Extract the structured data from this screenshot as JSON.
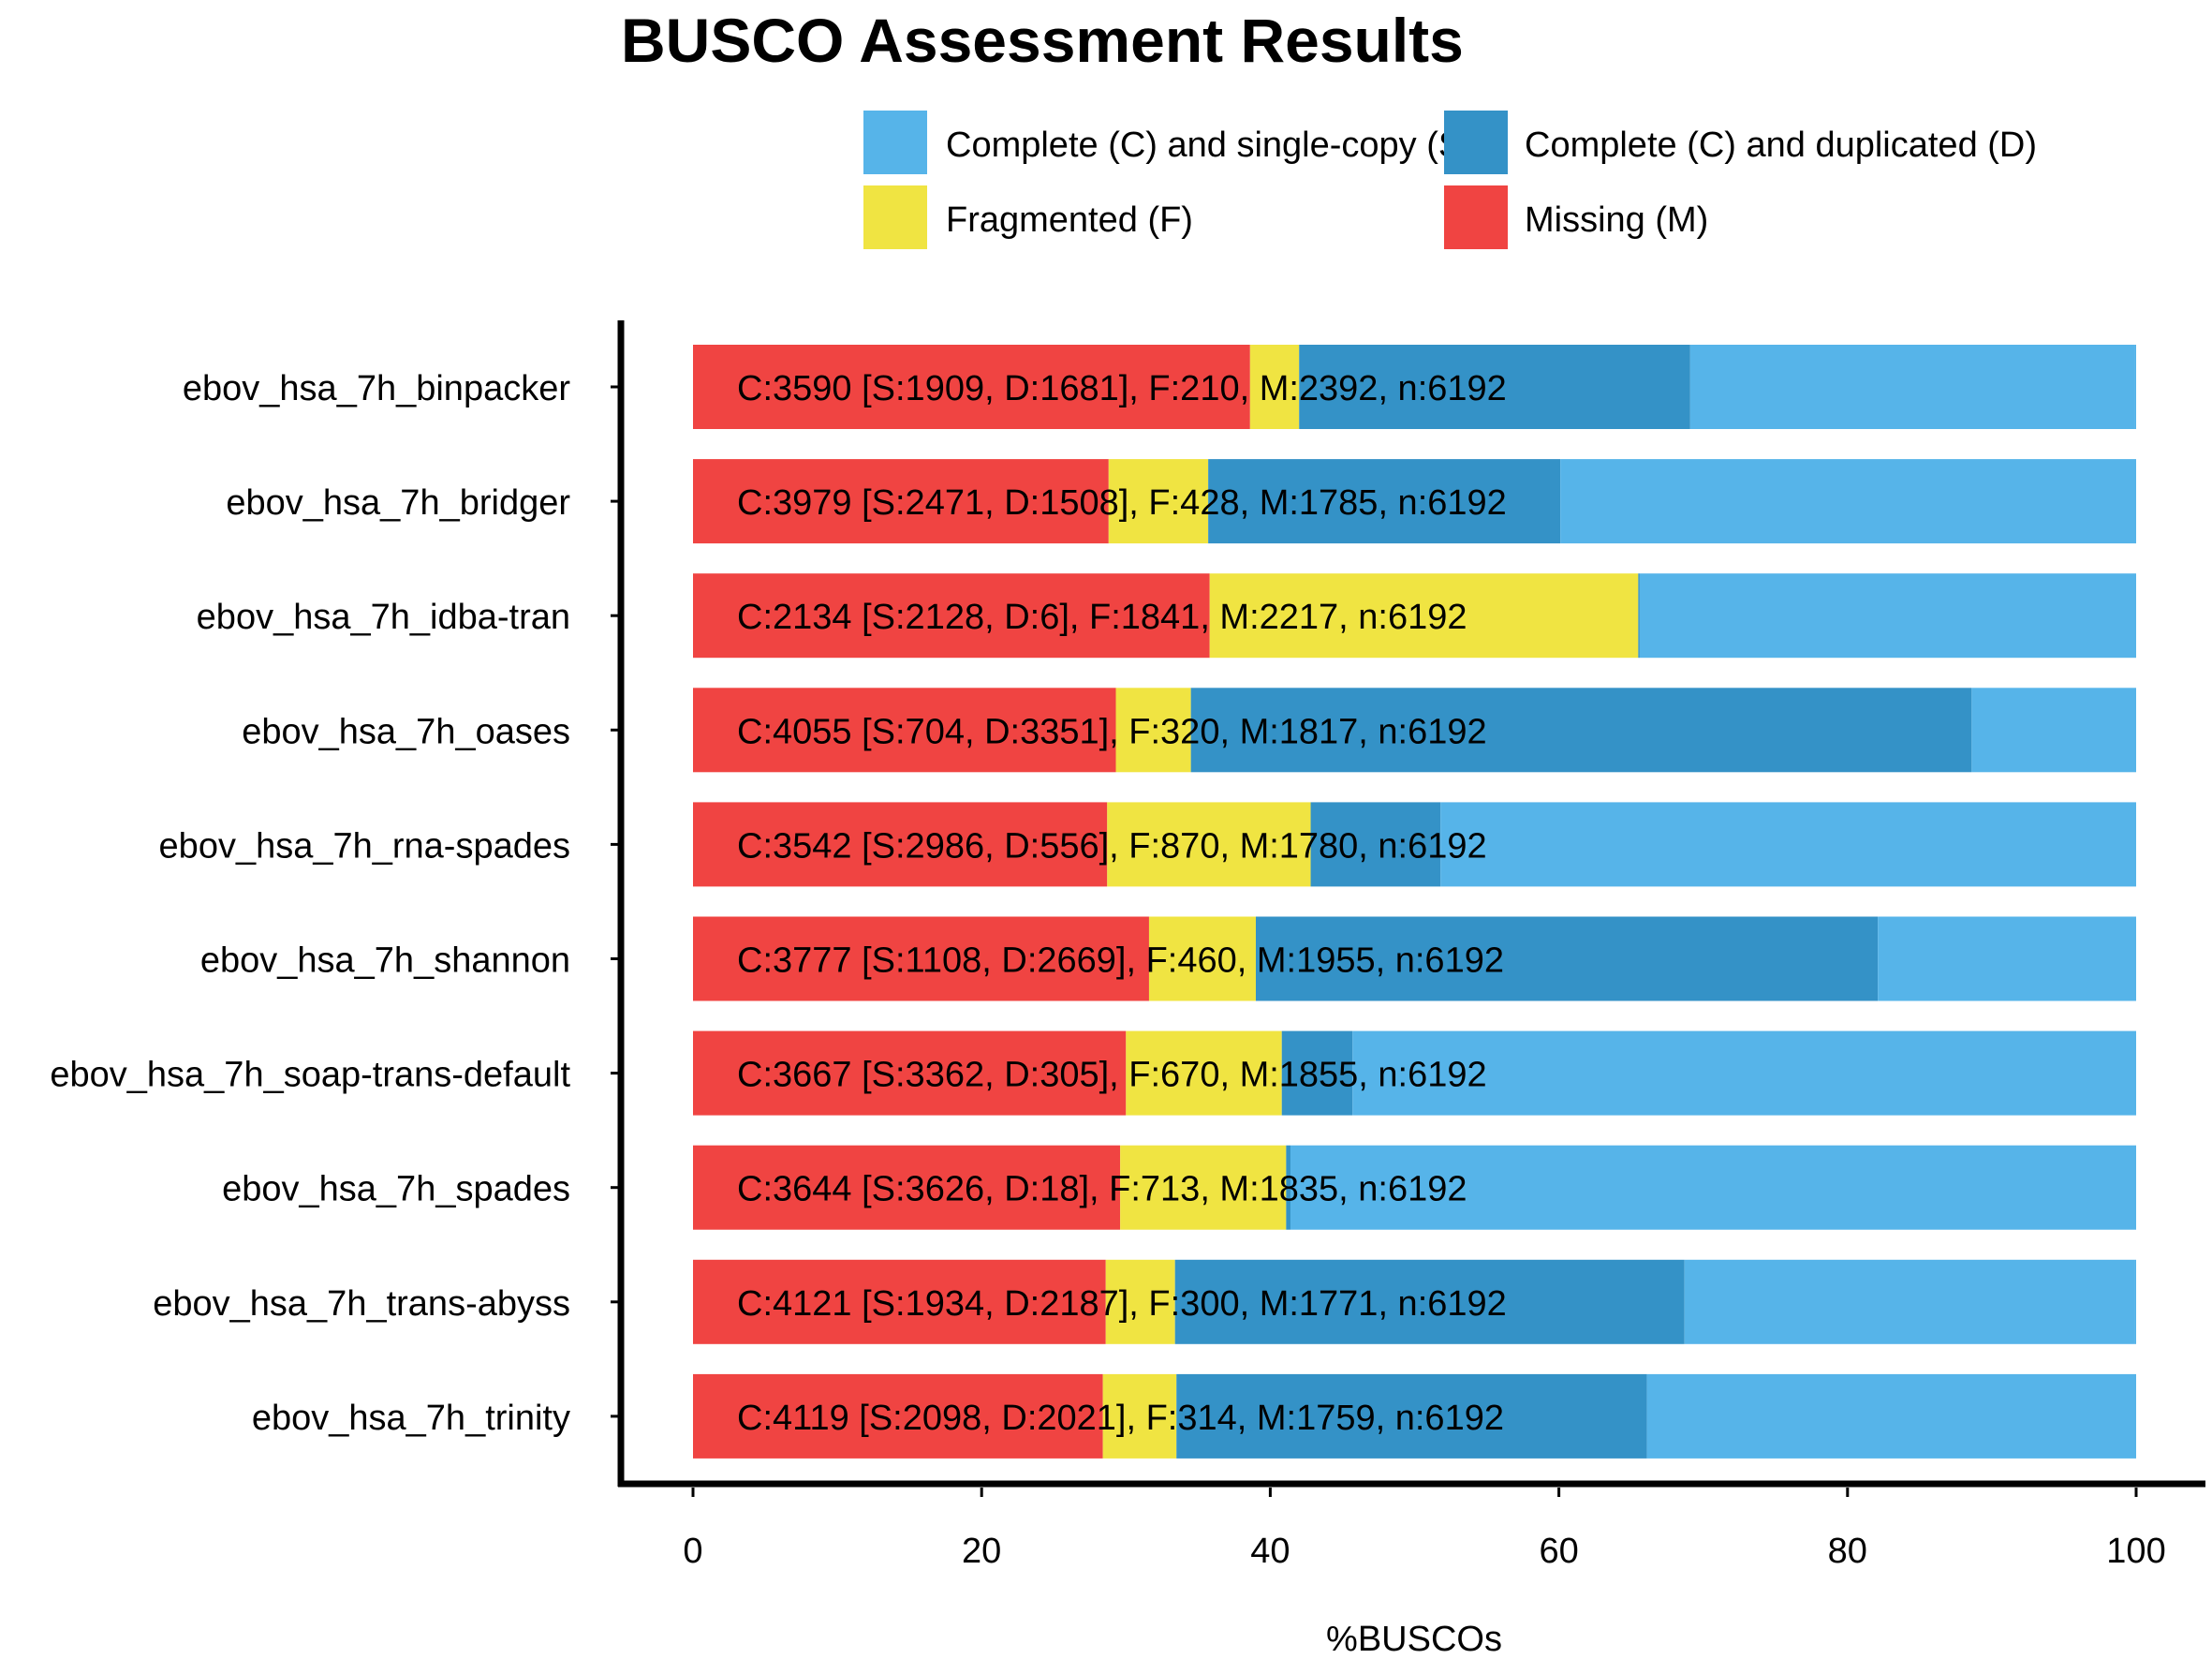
{
  "chart_data": {
    "type": "bar",
    "orientation": "horizontal",
    "stacked": true,
    "title": "BUSCO Assessment Results",
    "xlabel": "%BUSCOs",
    "ylabel": "",
    "xlim": [
      0,
      100
    ],
    "xticks": [
      0,
      20,
      40,
      60,
      80,
      100
    ],
    "grid": false,
    "legend_position": "top-right",
    "colors": {
      "missing": "#F04442",
      "fragmented": "#F0E442",
      "single": "#56B4E9",
      "duplicated": "#3492C7"
    },
    "legend": [
      {
        "key": "single",
        "label": "Complete (C) and single-copy (S)"
      },
      {
        "key": "duplicated",
        "label": "Complete (C) and duplicated (D)"
      },
      {
        "key": "fragmented",
        "label": "Fragmented (F)"
      },
      {
        "key": "missing",
        "label": "Missing (M)"
      }
    ],
    "categories": [
      "ebov_hsa_7h_binpacker",
      "ebov_hsa_7h_bridger",
      "ebov_hsa_7h_idba-tran",
      "ebov_hsa_7h_oases",
      "ebov_hsa_7h_rna-spades",
      "ebov_hsa_7h_shannon",
      "ebov_hsa_7h_soap-trans-default",
      "ebov_hsa_7h_spades",
      "ebov_hsa_7h_trans-abyss",
      "ebov_hsa_7h_trinity"
    ],
    "series": [
      {
        "name": "Missing (M)",
        "key": "missing",
        "values": [
          38.6,
          28.8,
          35.8,
          29.3,
          28.7,
          31.6,
          30.0,
          29.6,
          28.6,
          28.4
        ]
      },
      {
        "name": "Fragmented (F)",
        "key": "fragmented",
        "values": [
          3.4,
          6.9,
          29.7,
          5.2,
          14.1,
          7.4,
          10.8,
          11.5,
          4.8,
          5.1
        ]
      },
      {
        "name": "Complete (C) and duplicated (D)",
        "key": "duplicated",
        "values": [
          27.1,
          24.4,
          0.1,
          54.1,
          9.0,
          43.1,
          4.9,
          0.3,
          35.3,
          32.6
        ]
      },
      {
        "name": "Complete (C) and single-copy (S)",
        "key": "single",
        "values": [
          30.8,
          39.9,
          34.4,
          11.4,
          48.2,
          17.9,
          54.3,
          58.6,
          31.2,
          33.9
        ]
      }
    ],
    "bar_labels": [
      "C:3590 [S:1909, D:1681], F:210, M:2392, n:6192",
      "C:3979 [S:2471, D:1508], F:428, M:1785, n:6192",
      "C:2134 [S:2128, D:6], F:1841, M:2217, n:6192",
      "C:4055 [S:704, D:3351], F:320, M:1817, n:6192",
      "C:3542 [S:2986, D:556], F:870, M:1780, n:6192",
      "C:3777 [S:1108, D:2669], F:460, M:1955, n:6192",
      "C:3667 [S:3362, D:305], F:670, M:1855, n:6192",
      "C:3644 [S:3626, D:18], F:713, M:1835, n:6192",
      "C:4121 [S:1934, D:2187], F:300, M:1771, n:6192",
      "C:4119 [S:2098, D:2021], F:314, M:1759, n:6192"
    ]
  }
}
